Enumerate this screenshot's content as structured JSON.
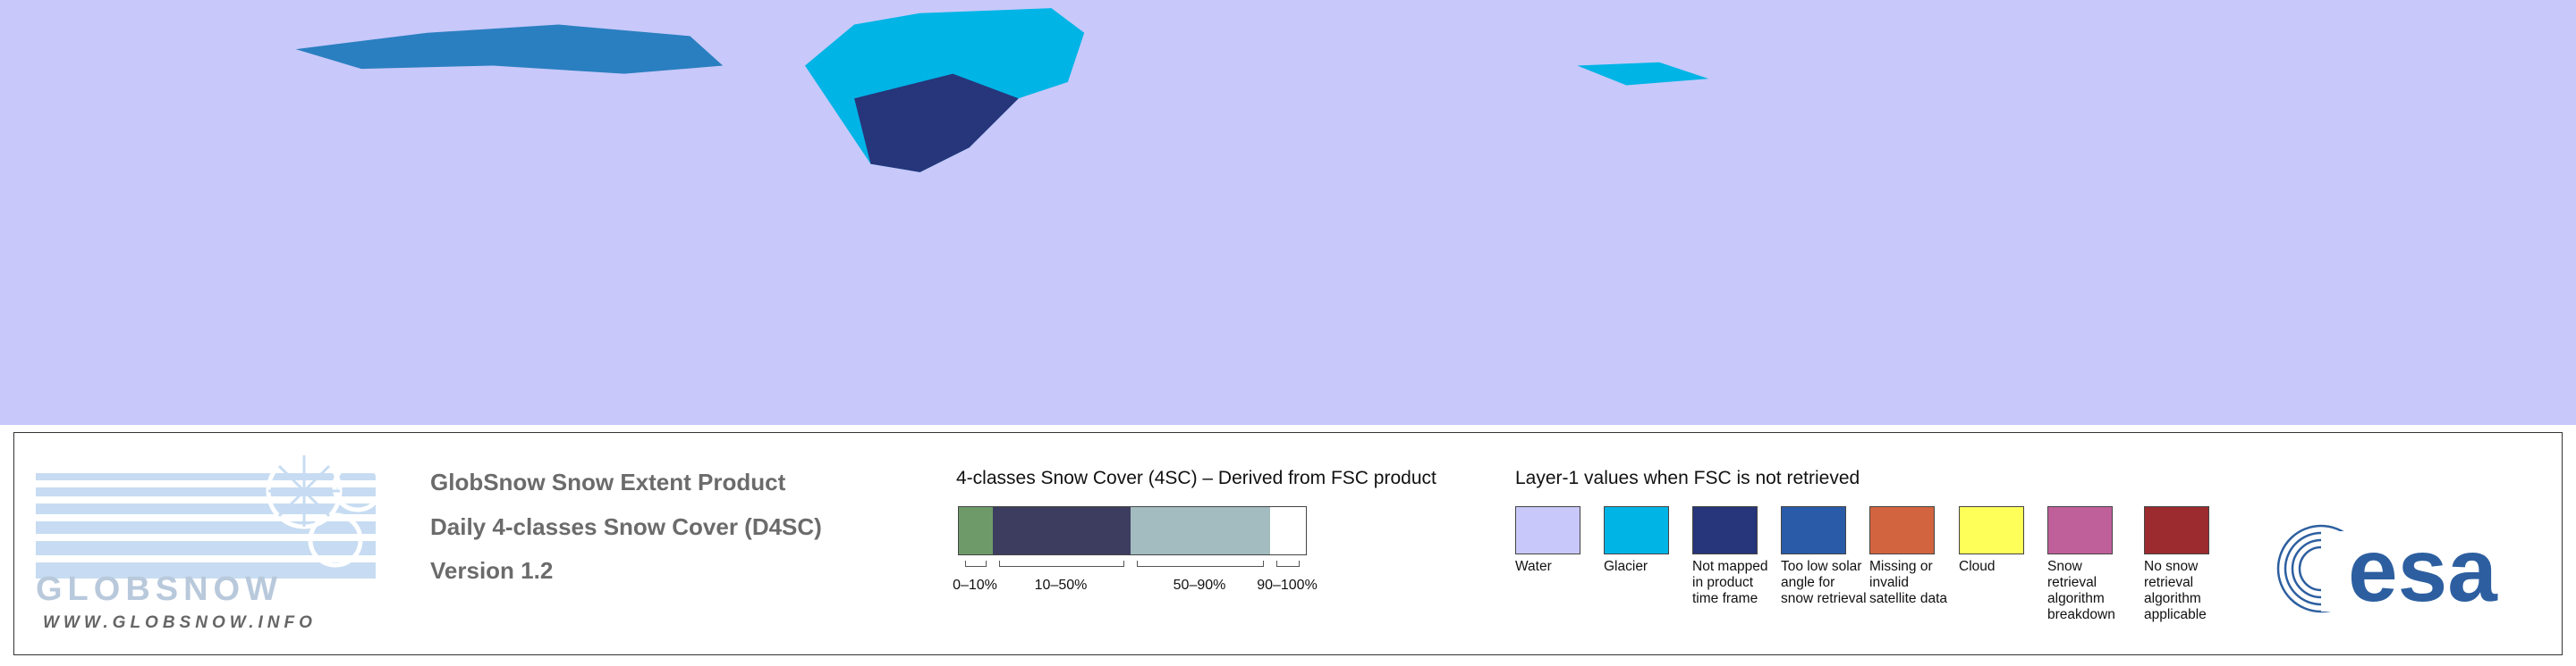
{
  "logo": {
    "name": "GLOBSNOW",
    "url": "WWW.GLOBSNOW.INFO"
  },
  "product": {
    "lines": [
      "GlobSnow Snow Extent Product",
      "Daily 4-classes Snow Cover (D4SC)",
      "Version 1.2"
    ]
  },
  "snow_cover_legend": {
    "title": "4-classes Snow Cover (4SC) – Derived from FSC product",
    "classes": [
      {
        "label": "0–10%",
        "color": "#6e9a6a"
      },
      {
        "label": "10–50%",
        "color": "#3d3d5f"
      },
      {
        "label": "50–90%",
        "color": "#a3bcc0"
      },
      {
        "label": "90–100%",
        "color": "#ffffff"
      }
    ]
  },
  "layer1_legend": {
    "title": "Layer-1 values when FSC is not retrieved",
    "items": [
      {
        "label": "Water",
        "color": "#c8c8fa"
      },
      {
        "label": "Glacier",
        "color": "#00b4e6"
      },
      {
        "label": "Not mapped in product time frame",
        "color": "#27357a"
      },
      {
        "label": "Too low solar angle for snow retrieval",
        "color": "#2a5ba8"
      },
      {
        "label": "Missing or invalid satellite data",
        "color": "#d2643f"
      },
      {
        "label": "Cloud",
        "color": "#ffff5a"
      },
      {
        "label": "Snow retrieval algorithm breakdown",
        "color": "#c0609a"
      },
      {
        "label": "No snow retrieval algorithm applicable",
        "color": "#9b2b2e"
      }
    ]
  },
  "agency": {
    "name": "esa"
  }
}
